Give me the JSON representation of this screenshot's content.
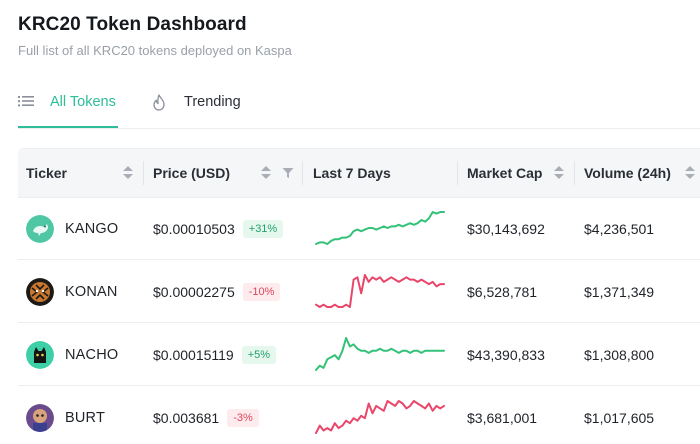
{
  "page": {
    "title": "KRC20 Token Dashboard",
    "subtitle": "Full list of all KRC20 tokens deployed on Kaspa"
  },
  "tabs": [
    {
      "label": "All Tokens",
      "icon": "list-icon",
      "active": true
    },
    {
      "label": "Trending",
      "icon": "flame-icon",
      "active": false
    }
  ],
  "table": {
    "columns": [
      "Ticker",
      "Price (USD)",
      "Last 7 Days",
      "Market Cap",
      "Volume (24h)"
    ],
    "rows": [
      {
        "ticker": "KANGO",
        "price": "$0.00010503",
        "change": "+31%",
        "trend": "up",
        "market_cap": "$30,143,692",
        "volume": "$4,236,501",
        "spark": [
          2,
          3,
          3,
          2,
          4,
          5,
          5,
          6,
          6,
          7,
          10,
          11,
          10,
          11,
          12,
          12,
          11,
          12,
          13,
          12,
          13,
          13,
          14,
          13,
          14,
          15,
          14,
          15,
          17,
          16,
          18,
          22,
          21,
          22,
          22
        ],
        "spark_color": "#34c178"
      },
      {
        "ticker": "KONAN",
        "price": "$0.00002275",
        "change": "-10%",
        "trend": "down",
        "market_cap": "$6,528,781",
        "volume": "$1,371,349",
        "spark": [
          3,
          2,
          3,
          2,
          2,
          3,
          2,
          2,
          3,
          2,
          14,
          15,
          8,
          16,
          13,
          15,
          14,
          15,
          13,
          14,
          15,
          14,
          13,
          14,
          15,
          14,
          14,
          13,
          14,
          13,
          12,
          13,
          11,
          12,
          12
        ],
        "spark_color": "#e8466a"
      },
      {
        "ticker": "NACHO",
        "price": "$0.00015119",
        "change": "+5%",
        "trend": "up",
        "market_cap": "$43,390,833",
        "volume": "$1,308,800",
        "spark": [
          3,
          5,
          4,
          8,
          9,
          10,
          8,
          12,
          18,
          14,
          15,
          13,
          12,
          12,
          11,
          12,
          12,
          13,
          12,
          12,
          13,
          12,
          11,
          12,
          12,
          11,
          12,
          12,
          11,
          12,
          12,
          12,
          12,
          12,
          12
        ],
        "spark_color": "#34c178"
      },
      {
        "ticker": "BURT",
        "price": "$0.003681",
        "change": "-3%",
        "trend": "down",
        "market_cap": "$3,681,001",
        "volume": "$1,017,605",
        "spark": [
          2,
          5,
          3,
          4,
          3,
          6,
          4,
          5,
          7,
          6,
          8,
          7,
          9,
          8,
          14,
          10,
          13,
          12,
          11,
          15,
          14,
          13,
          15,
          14,
          12,
          13,
          15,
          14,
          13,
          12,
          14,
          11,
          13,
          12,
          13
        ],
        "spark_color": "#e8466a"
      }
    ]
  }
}
